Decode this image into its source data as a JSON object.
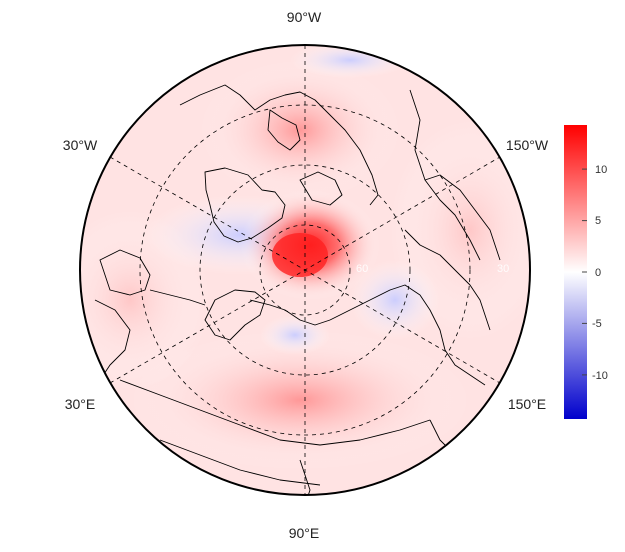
{
  "map": {
    "projection": "north-polar-stereographic",
    "longitude_labels": {
      "top": "90°W",
      "upper_left": "30°W",
      "upper_right": "150°W",
      "lower_left": "30°E",
      "lower_right": "150°E",
      "bottom": "90°E"
    },
    "latitude_labels": [
      "60",
      "30"
    ],
    "grid_style": "dashed"
  },
  "colorbar": {
    "ticks": [
      "10",
      "5",
      "0",
      "-5",
      "-10"
    ],
    "range": [
      -14,
      14
    ],
    "colors": {
      "high": "#ff0000",
      "mid": "#ffffff",
      "low": "#0000cc"
    }
  }
}
